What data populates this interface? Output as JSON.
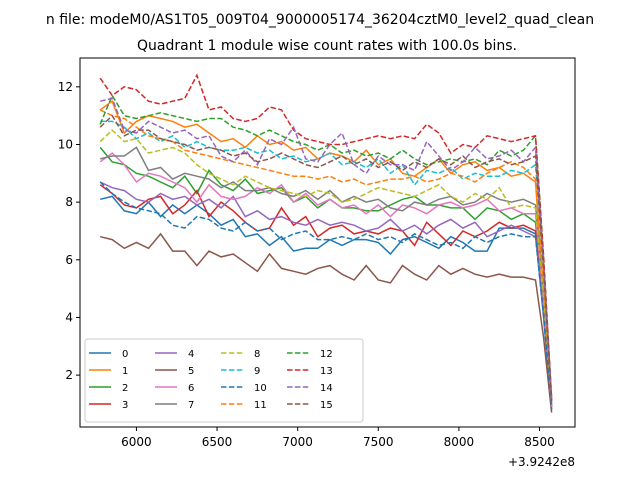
{
  "chart_data": {
    "type": "line",
    "suptitle": "n file: modeM0/AS1T05_009T04_9000005174_36204cztM0_level2_quad_clean",
    "title": "Quadrant 1 module wise count rates with 100.0s bins.",
    "xlabel": "",
    "ylabel": "",
    "x_offset_label": "+3.9242e8",
    "xlim": [
      5650,
      8720
    ],
    "ylim": [
      0.2,
      13.0
    ],
    "xticks": [
      6000,
      6500,
      7000,
      7500,
      8000,
      8500
    ],
    "yticks": [
      2,
      4,
      6,
      8,
      10,
      12
    ],
    "grid": false,
    "legend": {
      "placement": "lower-left",
      "columns": 4
    },
    "x": [
      5775,
      5850,
      5925,
      6000,
      6075,
      6150,
      6225,
      6300,
      6375,
      6450,
      6525,
      6600,
      6675,
      6750,
      6825,
      6900,
      6975,
      7050,
      7125,
      7200,
      7275,
      7350,
      7425,
      7500,
      7575,
      7650,
      7725,
      7800,
      7875,
      7950,
      8025,
      8100,
      8175,
      8250,
      8325,
      8400,
      8475,
      8525,
      8575
    ],
    "series": [
      {
        "name": "0",
        "color": "#1f77b4",
        "dash": "solid",
        "values": [
          8.1,
          8.2,
          7.7,
          7.6,
          8.0,
          7.5,
          7.9,
          7.6,
          7.9,
          7.6,
          7.2,
          7.4,
          6.8,
          6.9,
          6.5,
          6.8,
          6.3,
          6.4,
          6.4,
          6.7,
          6.5,
          6.7,
          6.7,
          6.6,
          6.2,
          6.7,
          6.8,
          6.6,
          6.4,
          6.8,
          6.6,
          6.3,
          6.3,
          7.1,
          7.1,
          7.1,
          6.9,
          4.0,
          0.8
        ]
      },
      {
        "name": "1",
        "color": "#ff7f0e",
        "dash": "solid",
        "values": [
          11.2,
          11.5,
          10.4,
          10.8,
          11.0,
          10.9,
          10.8,
          10.6,
          10.7,
          10.4,
          10.1,
          10.2,
          9.9,
          10.3,
          10.0,
          10.1,
          9.8,
          9.9,
          9.5,
          9.7,
          9.6,
          9.4,
          9.8,
          9.3,
          9.5,
          9.0,
          8.9,
          9.2,
          9.5,
          9.0,
          9.3,
          9.4,
          9.1,
          9.2,
          8.9,
          9.0,
          8.7,
          4.8,
          1.0
        ]
      },
      {
        "name": "2",
        "color": "#2ca02c",
        "dash": "solid",
        "values": [
          9.9,
          9.4,
          9.3,
          9.0,
          8.9,
          8.7,
          8.5,
          8.9,
          8.3,
          9.1,
          8.6,
          8.4,
          8.8,
          8.3,
          8.4,
          8.5,
          8.0,
          8.2,
          7.8,
          8.1,
          7.8,
          7.8,
          7.7,
          7.7,
          7.9,
          8.1,
          8.2,
          7.9,
          7.9,
          7.8,
          7.8,
          7.4,
          7.8,
          7.7,
          7.4,
          7.6,
          7.3,
          4.5,
          0.9
        ]
      },
      {
        "name": "3",
        "color": "#d62728",
        "dash": "solid",
        "values": [
          8.6,
          8.3,
          7.9,
          7.8,
          8.1,
          8.2,
          7.6,
          7.9,
          8.4,
          7.5,
          8.0,
          7.7,
          7.3,
          7.0,
          7.1,
          7.8,
          7.2,
          7.5,
          6.8,
          7.1,
          7.2,
          6.9,
          7.0,
          6.9,
          7.1,
          7.0,
          6.5,
          7.3,
          6.9,
          6.5,
          7.0,
          6.8,
          7.0,
          7.3,
          7.1,
          7.2,
          7.0,
          4.3,
          0.9
        ]
      },
      {
        "name": "4",
        "color": "#9467bd",
        "dash": "solid",
        "values": [
          8.7,
          8.5,
          8.4,
          8.1,
          8.0,
          8.3,
          8.1,
          8.2,
          7.9,
          8.1,
          7.8,
          8.2,
          7.5,
          7.7,
          7.4,
          7.5,
          7.3,
          7.2,
          7.4,
          7.2,
          7.3,
          7.2,
          7.0,
          7.1,
          7.4,
          7.0,
          7.2,
          6.9,
          7.2,
          7.4,
          7.1,
          7.3,
          6.8,
          7.0,
          7.2,
          7.0,
          6.8,
          4.2,
          0.9
        ]
      },
      {
        "name": "5",
        "color": "#8c564b",
        "dash": "solid",
        "values": [
          6.8,
          6.7,
          6.4,
          6.6,
          6.4,
          6.9,
          6.3,
          6.3,
          5.8,
          6.3,
          6.1,
          6.2,
          5.9,
          5.6,
          6.2,
          5.7,
          5.6,
          5.5,
          5.7,
          5.8,
          5.5,
          5.3,
          5.8,
          5.3,
          5.2,
          5.8,
          5.5,
          5.3,
          5.8,
          5.5,
          5.7,
          5.5,
          5.4,
          5.5,
          5.4,
          5.4,
          5.3,
          3.3,
          0.7
        ]
      },
      {
        "name": "6",
        "color": "#e377c2",
        "dash": "solid",
        "values": [
          9.4,
          9.7,
          9.3,
          8.7,
          9.0,
          8.9,
          8.7,
          8.5,
          8.0,
          8.6,
          8.2,
          8.1,
          8.2,
          8.5,
          8.3,
          8.6,
          8.0,
          8.3,
          7.9,
          8.1,
          7.8,
          7.9,
          7.6,
          7.9,
          7.5,
          7.9,
          7.8,
          7.6,
          7.9,
          8.0,
          7.8,
          7.9,
          8.1,
          7.7,
          7.8,
          7.6,
          7.6,
          4.6,
          0.9
        ]
      },
      {
        "name": "7",
        "color": "#7f7f7f",
        "dash": "solid",
        "values": [
          9.5,
          9.6,
          9.6,
          9.9,
          9.1,
          9.2,
          8.8,
          9.0,
          8.9,
          8.8,
          8.5,
          8.7,
          8.4,
          8.4,
          8.5,
          8.3,
          8.2,
          8.4,
          8.1,
          8.4,
          8.0,
          8.2,
          8.0,
          8.1,
          7.8,
          7.7,
          8.0,
          7.9,
          8.1,
          8.2,
          7.9,
          8.0,
          8.3,
          8.1,
          8.0,
          8.1,
          7.9,
          4.8,
          1.0
        ]
      },
      {
        "name": "8",
        "color": "#bcbd22",
        "dash": "dashed",
        "values": [
          10.1,
          10.5,
          10.1,
          10.2,
          9.7,
          9.8,
          9.9,
          9.7,
          9.3,
          9.0,
          8.8,
          8.6,
          8.9,
          8.7,
          8.5,
          8.4,
          8.3,
          8.2,
          8.4,
          8.3,
          8.0,
          8.1,
          8.3,
          8.5,
          8.4,
          8.3,
          8.2,
          8.4,
          8.6,
          8.2,
          8.0,
          8.3,
          8.1,
          8.5,
          7.8,
          7.9,
          7.8,
          4.7,
          1.0
        ]
      },
      {
        "name": "9",
        "color": "#17becf",
        "dash": "dashed",
        "values": [
          10.8,
          10.8,
          10.6,
          10.2,
          10.4,
          10.1,
          10.3,
          9.9,
          10.1,
          9.9,
          9.8,
          9.8,
          9.9,
          9.7,
          9.8,
          9.5,
          9.6,
          9.4,
          9.5,
          9.7,
          9.3,
          9.4,
          9.2,
          9.5,
          9.0,
          9.3,
          8.6,
          9.1,
          9.0,
          9.2,
          8.8,
          9.0,
          8.9,
          8.9,
          9.1,
          9.0,
          9.3,
          5.5,
          1.1
        ]
      },
      {
        "name": "10",
        "color": "#1f77b4",
        "dash": "dashed",
        "values": [
          8.7,
          8.3,
          8.0,
          7.8,
          7.7,
          7.6,
          7.2,
          7.1,
          7.5,
          7.4,
          7.1,
          7.0,
          7.3,
          7.0,
          7.1,
          6.7,
          6.9,
          7.0,
          6.7,
          6.7,
          6.8,
          6.7,
          6.9,
          6.7,
          6.8,
          6.6,
          6.9,
          6.7,
          6.5,
          6.6,
          6.4,
          6.8,
          6.6,
          6.8,
          6.9,
          6.8,
          6.8,
          4.1,
          0.8
        ]
      },
      {
        "name": "11",
        "color": "#ff7f0e",
        "dash": "dashed",
        "values": [
          11.2,
          11.0,
          10.9,
          10.6,
          10.3,
          10.2,
          10.1,
          9.8,
          9.7,
          9.6,
          9.5,
          9.4,
          9.3,
          9.2,
          9.1,
          9.0,
          8.9,
          8.9,
          8.8,
          8.9,
          8.7,
          8.8,
          8.6,
          8.7,
          8.8,
          8.8,
          8.9,
          8.7,
          8.8,
          9.0,
          8.9,
          8.7,
          9.0,
          9.2,
          9.4,
          9.2,
          8.8,
          5.2,
          1.1
        ]
      },
      {
        "name": "12",
        "color": "#2ca02c",
        "dash": "dashed",
        "values": [
          10.7,
          11.7,
          11.0,
          10.9,
          11.0,
          11.1,
          11.0,
          10.9,
          10.8,
          10.9,
          10.9,
          10.6,
          10.5,
          10.3,
          10.5,
          10.3,
          10.1,
          10.0,
          9.8,
          10.0,
          9.7,
          9.8,
          9.6,
          9.7,
          9.5,
          9.8,
          9.5,
          9.3,
          9.4,
          9.5,
          9.4,
          9.5,
          9.3,
          9.8,
          9.6,
          9.8,
          10.3,
          6.1,
          1.2
        ]
      },
      {
        "name": "13",
        "color": "#d62728",
        "dash": "dashed",
        "values": [
          12.3,
          11.7,
          12.0,
          11.9,
          11.5,
          11.4,
          11.5,
          11.6,
          12.4,
          11.2,
          11.3,
          10.9,
          10.8,
          10.9,
          11.3,
          11.2,
          10.5,
          10.2,
          10.1,
          10.0,
          10.0,
          10.1,
          10.2,
          10.3,
          10.2,
          10.3,
          10.2,
          10.7,
          10.4,
          9.7,
          10.0,
          9.9,
          10.3,
          10.2,
          10.1,
          10.2,
          10.3,
          6.1,
          1.2
        ]
      },
      {
        "name": "14",
        "color": "#9467bd",
        "dash": "dashed",
        "values": [
          11.5,
          11.6,
          10.5,
          10.4,
          10.8,
          10.6,
          10.4,
          10.5,
          10.2,
          10.3,
          9.6,
          9.4,
          9.8,
          9.3,
          10.2,
          10.0,
          10.6,
          9.5,
          9.4,
          10.0,
          10.4,
          9.3,
          9.0,
          9.6,
          9.3,
          9.3,
          9.1,
          10.1,
          9.6,
          9.1,
          9.4,
          9.9,
          9.5,
          9.6,
          9.8,
          9.4,
          9.9,
          5.8,
          1.1
        ]
      },
      {
        "name": "15",
        "color": "#8c564b",
        "dash": "dashed",
        "values": [
          10.6,
          11.0,
          10.3,
          10.5,
          10.5,
          10.2,
          10.1,
          10.0,
          9.8,
          9.9,
          9.8,
          9.6,
          9.7,
          9.4,
          9.5,
          9.7,
          9.5,
          9.3,
          9.2,
          9.4,
          9.6,
          9.3,
          9.5,
          9.2,
          9.4,
          9.1,
          9.4,
          9.2,
          9.5,
          9.3,
          9.6,
          9.2,
          9.4,
          9.5,
          9.3,
          9.4,
          9.6,
          5.7,
          1.1
        ]
      }
    ]
  }
}
